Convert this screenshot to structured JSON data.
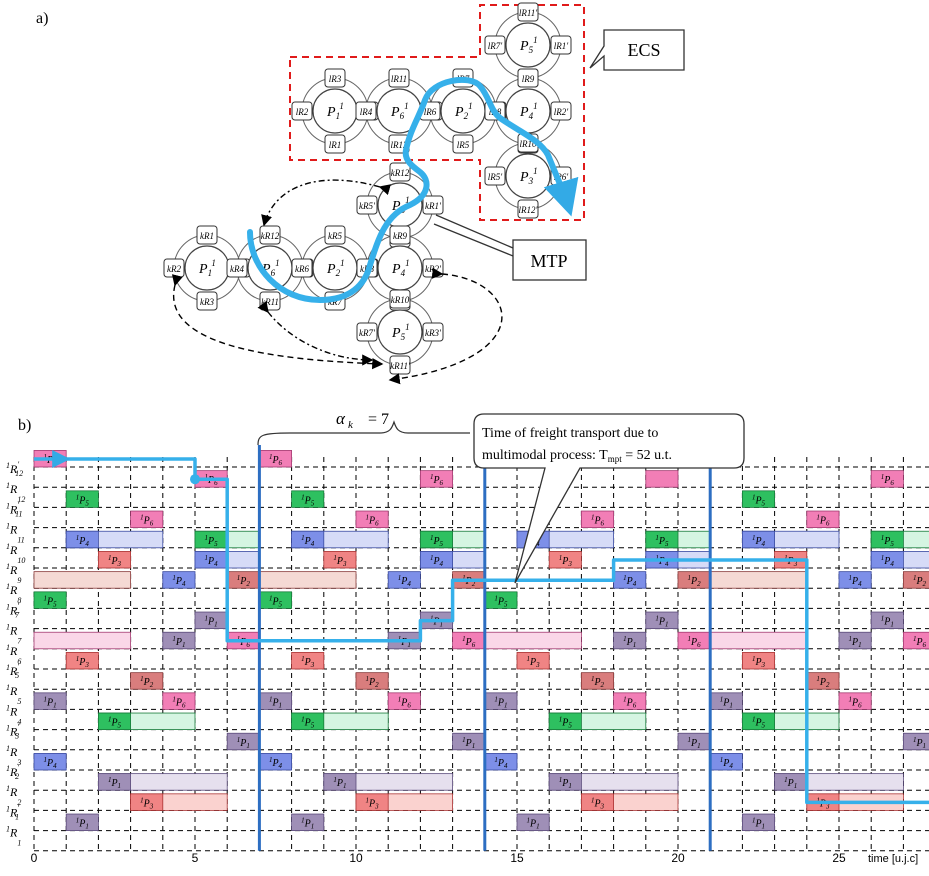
{
  "panel_a": {
    "label": "a)",
    "ecs_label": "ECS",
    "mtp_label": "MTP",
    "places": [
      {
        "id": "P1_top",
        "name": "P",
        "sub": "1",
        "sup": "1",
        "resources": [
          "lR3",
          "lR2",
          "lR4",
          "lR1"
        ]
      },
      {
        "id": "P6_top",
        "name": "P",
        "sub": "6",
        "sup": "1",
        "resources": [
          "lR11",
          "lR4",
          "lR6",
          "lR12"
        ]
      },
      {
        "id": "P2_top",
        "name": "P",
        "sub": "2",
        "sup": "1",
        "resources": [
          "lR7",
          "lR6",
          "lR8",
          "lR5"
        ]
      },
      {
        "id": "P4_top",
        "name": "P",
        "sub": "4",
        "sup": "1",
        "resources": [
          "lR9",
          "lR8",
          "lR2'",
          "lR10"
        ]
      },
      {
        "id": "P5_top",
        "name": "P",
        "sub": "5",
        "sup": "1",
        "resources": [
          "lR11'",
          "lR7'",
          "lR1'",
          "lR9"
        ]
      },
      {
        "id": "P3_top",
        "name": "P",
        "sub": "3",
        "sup": "1",
        "resources": [
          "lR10",
          "lR5'",
          "lR6'",
          "lR12'"
        ]
      },
      {
        "id": "P3_mid",
        "name": "P",
        "sub": "3",
        "sup": "1",
        "resources": [
          "kR12",
          "kR5'",
          "kR1'",
          "kR9"
        ]
      },
      {
        "id": "P1_bot",
        "name": "P",
        "sub": "1",
        "sup": "1",
        "resources": [
          "kR1",
          "kR2",
          "kR4",
          "kR3"
        ]
      },
      {
        "id": "P6_bot",
        "name": "P",
        "sub": "6",
        "sup": "1",
        "resources": [
          "kR12",
          "kR4",
          "kR6",
          "kR11"
        ]
      },
      {
        "id": "P2_bot",
        "name": "P",
        "sub": "2",
        "sup": "1",
        "resources": [
          "kR5",
          "kR6",
          "kR8",
          "kR7"
        ]
      },
      {
        "id": "P4_bot",
        "name": "P",
        "sub": "4",
        "sup": "1",
        "resources": [
          "kR9",
          "kR8",
          "kR2'",
          "kR10"
        ]
      },
      {
        "id": "P5_bot",
        "name": "P",
        "sub": "5",
        "sup": "1",
        "resources": [
          "kR10",
          "kR7'",
          "kR3'",
          "kR11'"
        ]
      }
    ]
  },
  "panel_b": {
    "label": "b)",
    "alpha_label": "α",
    "alpha_sub": "k",
    "alpha_value": "= 7",
    "callout_line1": "Time of freight transport due to",
    "callout_line2_prefix": "multimodal process: T",
    "callout_line2_sub": "mpt",
    "callout_line2_suffix": " = 52 u.t.",
    "x_axis_label": "time [u.j.c]",
    "x_ticks": [
      "0",
      "5",
      "10",
      "15",
      "20",
      "25"
    ],
    "rows": [
      {
        "sup": "1",
        "base": "R",
        "sub": "12",
        "prime": "'"
      },
      {
        "sup": "1",
        "base": "R",
        "sub": "12",
        "prime": ""
      },
      {
        "sup": "1",
        "base": "R",
        "sub": "11",
        "prime": "'"
      },
      {
        "sup": "1",
        "base": "R",
        "sub": "11",
        "prime": ""
      },
      {
        "sup": "1",
        "base": "R",
        "sub": "10",
        "prime": ""
      },
      {
        "sup": "1",
        "base": "R",
        "sub": "9",
        "prime": ""
      },
      {
        "sup": "1",
        "base": "R",
        "sub": "8",
        "prime": ""
      },
      {
        "sup": "1",
        "base": "R",
        "sub": "7",
        "prime": "'"
      },
      {
        "sup": "1",
        "base": "R",
        "sub": "7",
        "prime": ""
      },
      {
        "sup": "1",
        "base": "R",
        "sub": "6",
        "prime": ""
      },
      {
        "sup": "1",
        "base": "R",
        "sub": "5",
        "prime": "'"
      },
      {
        "sup": "1",
        "base": "R",
        "sub": "5",
        "prime": ""
      },
      {
        "sup": "1",
        "base": "R",
        "sub": "4",
        "prime": ""
      },
      {
        "sup": "1",
        "base": "R",
        "sub": "3",
        "prime": "'"
      },
      {
        "sup": "1",
        "base": "R",
        "sub": "3",
        "prime": ""
      },
      {
        "sup": "1",
        "base": "R",
        "sub": "2",
        "prime": "'"
      },
      {
        "sup": "1",
        "base": "R",
        "sub": "2",
        "prime": ""
      },
      {
        "sup": "1",
        "base": "R",
        "sub": "1",
        "prime": "'"
      },
      {
        "sup": "1",
        "base": "R",
        "sub": "1",
        "prime": ""
      }
    ],
    "process_colors": {
      "1": {
        "fill": "#9f8fb7",
        "stroke": "#5a4a7a",
        "light": "#e6e0ee"
      },
      "2": {
        "fill": "#d97d7d",
        "stroke": "#8a3a3a",
        "light": "#f5d9d4"
      },
      "3": {
        "fill": "#f08484",
        "stroke": "#a33",
        "light": "#fad2cf"
      },
      "4": {
        "fill": "#7d8fe8",
        "stroke": "#3a4aa0",
        "light": "#d6dbf7"
      },
      "5": {
        "fill": "#2ec060",
        "stroke": "#177a3a",
        "light": "#d5f5e2"
      },
      "6": {
        "fill": "#f27eb6",
        "stroke": "#a33a70",
        "light": "#fad7e8"
      }
    },
    "blocks": [
      {
        "row": 0,
        "start": 0,
        "dur": 1,
        "p": "6"
      },
      {
        "row": 0,
        "start": 7,
        "dur": 1,
        "p": "6"
      },
      {
        "row": 1,
        "start": 5,
        "dur": 1,
        "p": "6"
      },
      {
        "row": 1,
        "start": 12,
        "dur": 1,
        "p": "6"
      },
      {
        "row": 1,
        "start": 19,
        "dur": 1,
        "p": "6",
        "empty": true
      },
      {
        "row": 1,
        "start": 26,
        "dur": 1,
        "p": "6"
      },
      {
        "row": 2,
        "start": 1,
        "dur": 1,
        "p": "5"
      },
      {
        "row": 2,
        "start": 8,
        "dur": 1,
        "p": "5"
      },
      {
        "row": 2,
        "start": 22,
        "dur": 1,
        "p": "5"
      },
      {
        "row": 3,
        "start": 3,
        "dur": 1,
        "p": "6"
      },
      {
        "row": 3,
        "start": 10,
        "dur": 1,
        "p": "6"
      },
      {
        "row": 3,
        "start": 17,
        "dur": 1,
        "p": "6"
      },
      {
        "row": 3,
        "start": 24,
        "dur": 1,
        "p": "6"
      },
      {
        "row": 4,
        "start": 1,
        "dur": 3,
        "p": "4",
        "tail": true
      },
      {
        "row": 4,
        "start": 5,
        "dur": 2,
        "p": "5",
        "tail": true
      },
      {
        "row": 4,
        "start": 8,
        "dur": 3,
        "p": "4",
        "tail": true
      },
      {
        "row": 4,
        "start": 12,
        "dur": 2,
        "p": "5",
        "tail": true
      },
      {
        "row": 4,
        "start": 15,
        "dur": 3,
        "p": "4",
        "tail": true
      },
      {
        "row": 4,
        "start": 19,
        "dur": 2,
        "p": "5",
        "tail": true
      },
      {
        "row": 4,
        "start": 22,
        "dur": 3,
        "p": "4",
        "tail": true
      },
      {
        "row": 4,
        "start": 26,
        "dur": 2,
        "p": "5",
        "tail": true
      },
      {
        "row": 5,
        "start": 2,
        "dur": 1,
        "p": "3"
      },
      {
        "row": 5,
        "start": 5,
        "dur": 2,
        "p": "4",
        "tail": true
      },
      {
        "row": 5,
        "start": 9,
        "dur": 1,
        "p": "3"
      },
      {
        "row": 5,
        "start": 12,
        "dur": 2,
        "p": "4",
        "tail": true
      },
      {
        "row": 5,
        "start": 16,
        "dur": 1,
        "p": "3"
      },
      {
        "row": 5,
        "start": 19,
        "dur": 2,
        "p": "4",
        "tail": true
      },
      {
        "row": 5,
        "start": 23,
        "dur": 1,
        "p": "3"
      },
      {
        "row": 5,
        "start": 26,
        "dur": 2,
        "p": "4",
        "tail": true
      },
      {
        "row": 6,
        "start": 0,
        "dur": 3,
        "p": "2",
        "ghost": true
      },
      {
        "row": 6,
        "start": 4,
        "dur": 1,
        "p": "4"
      },
      {
        "row": 6,
        "start": 6,
        "dur": 1,
        "p": "2"
      },
      {
        "row": 6,
        "start": 7,
        "dur": 3,
        "p": "2",
        "ghost": true
      },
      {
        "row": 6,
        "start": 11,
        "dur": 1,
        "p": "4"
      },
      {
        "row": 6,
        "start": 13,
        "dur": 1,
        "p": "2"
      },
      {
        "row": 6,
        "start": 18,
        "dur": 1,
        "p": "4"
      },
      {
        "row": 6,
        "start": 20,
        "dur": 1,
        "p": "2"
      },
      {
        "row": 6,
        "start": 21,
        "dur": 3,
        "p": "2",
        "ghost": true
      },
      {
        "row": 6,
        "start": 25,
        "dur": 1,
        "p": "4"
      },
      {
        "row": 6,
        "start": 27,
        "dur": 1,
        "p": "2"
      },
      {
        "row": 7,
        "start": 0,
        "dur": 1,
        "p": "5"
      },
      {
        "row": 7,
        "start": 7,
        "dur": 1,
        "p": "5"
      },
      {
        "row": 7,
        "start": 14,
        "dur": 1,
        "p": "5"
      },
      {
        "row": 8,
        "start": 5,
        "dur": 1,
        "p": "1"
      },
      {
        "row": 8,
        "start": 12,
        "dur": 1,
        "p": "1"
      },
      {
        "row": 8,
        "start": 19,
        "dur": 1,
        "p": "1"
      },
      {
        "row": 8,
        "start": 26,
        "dur": 1,
        "p": "1"
      },
      {
        "row": 9,
        "start": 0,
        "dur": 3,
        "p": "6",
        "ghost": true
      },
      {
        "row": 9,
        "start": 4,
        "dur": 1,
        "p": "1"
      },
      {
        "row": 9,
        "start": 6,
        "dur": 1,
        "p": "6"
      },
      {
        "row": 9,
        "start": 11,
        "dur": 1,
        "p": "1"
      },
      {
        "row": 9,
        "start": 13,
        "dur": 1,
        "p": "6"
      },
      {
        "row": 9,
        "start": 14,
        "dur": 3,
        "p": "6",
        "ghost": true
      },
      {
        "row": 9,
        "start": 18,
        "dur": 1,
        "p": "1"
      },
      {
        "row": 9,
        "start": 20,
        "dur": 1,
        "p": "6"
      },
      {
        "row": 9,
        "start": 21,
        "dur": 3,
        "p": "6",
        "ghost": true
      },
      {
        "row": 9,
        "start": 25,
        "dur": 1,
        "p": "1"
      },
      {
        "row": 9,
        "start": 27,
        "dur": 1,
        "p": "6"
      },
      {
        "row": 10,
        "start": 1,
        "dur": 1,
        "p": "3"
      },
      {
        "row": 10,
        "start": 8,
        "dur": 1,
        "p": "3"
      },
      {
        "row": 10,
        "start": 15,
        "dur": 1,
        "p": "3"
      },
      {
        "row": 10,
        "start": 22,
        "dur": 1,
        "p": "3"
      },
      {
        "row": 11,
        "start": 3,
        "dur": 1,
        "p": "2"
      },
      {
        "row": 11,
        "start": 10,
        "dur": 1,
        "p": "2"
      },
      {
        "row": 11,
        "start": 17,
        "dur": 1,
        "p": "2"
      },
      {
        "row": 11,
        "start": 24,
        "dur": 1,
        "p": "2"
      },
      {
        "row": 12,
        "start": 0,
        "dur": 1,
        "p": "1"
      },
      {
        "row": 12,
        "start": 4,
        "dur": 1,
        "p": "6"
      },
      {
        "row": 12,
        "start": 7,
        "dur": 1,
        "p": "1"
      },
      {
        "row": 12,
        "start": 11,
        "dur": 1,
        "p": "6"
      },
      {
        "row": 12,
        "start": 14,
        "dur": 1,
        "p": "1"
      },
      {
        "row": 12,
        "start": 18,
        "dur": 1,
        "p": "6"
      },
      {
        "row": 12,
        "start": 21,
        "dur": 1,
        "p": "1"
      },
      {
        "row": 12,
        "start": 25,
        "dur": 1,
        "p": "6"
      },
      {
        "row": 13,
        "start": 2,
        "dur": 3,
        "p": "5",
        "tail": true
      },
      {
        "row": 13,
        "start": 8,
        "dur": 3,
        "p": "5",
        "tail": true
      },
      {
        "row": 13,
        "start": 16,
        "dur": 3,
        "p": "5",
        "tail": true
      },
      {
        "row": 13,
        "start": 22,
        "dur": 3,
        "p": "5",
        "tail": true
      },
      {
        "row": 14,
        "start": 6,
        "dur": 1,
        "p": "1"
      },
      {
        "row": 14,
        "start": 13,
        "dur": 1,
        "p": "1"
      },
      {
        "row": 14,
        "start": 20,
        "dur": 1,
        "p": "1"
      },
      {
        "row": 14,
        "start": 27,
        "dur": 1,
        "p": "1"
      },
      {
        "row": 15,
        "start": 0,
        "dur": 1,
        "p": "4"
      },
      {
        "row": 15,
        "start": 7,
        "dur": 1,
        "p": "4"
      },
      {
        "row": 15,
        "start": 14,
        "dur": 1,
        "p": "4"
      },
      {
        "row": 15,
        "start": 21,
        "dur": 1,
        "p": "4"
      },
      {
        "row": 16,
        "start": 2,
        "dur": 4,
        "p": "1",
        "tail": true
      },
      {
        "row": 16,
        "start": 9,
        "dur": 4,
        "p": "1",
        "tail": true
      },
      {
        "row": 16,
        "start": 16,
        "dur": 4,
        "p": "1",
        "tail": true
      },
      {
        "row": 16,
        "start": 23,
        "dur": 4,
        "p": "1",
        "tail": true
      },
      {
        "row": 17,
        "start": 3,
        "dur": 3,
        "p": "3",
        "tail": true
      },
      {
        "row": 17,
        "start": 10,
        "dur": 3,
        "p": "3",
        "tail": true
      },
      {
        "row": 17,
        "start": 17,
        "dur": 3,
        "p": "3",
        "tail": true
      },
      {
        "row": 17,
        "start": 24,
        "dur": 3,
        "p": "3",
        "tail": true
      },
      {
        "row": 18,
        "start": 1,
        "dur": 1,
        "p": "1"
      },
      {
        "row": 18,
        "start": 8,
        "dur": 1,
        "p": "1"
      },
      {
        "row": 18,
        "start": 15,
        "dur": 1,
        "p": "1"
      },
      {
        "row": 18,
        "start": 22,
        "dur": 1,
        "p": "1"
      }
    ],
    "route": [
      [
        0,
        0
      ],
      [
        5,
        0
      ],
      [
        5,
        1
      ],
      [
        6,
        1
      ],
      [
        6,
        9
      ],
      [
        12,
        9
      ],
      [
        12,
        8
      ],
      [
        13,
        8
      ],
      [
        13,
        6
      ],
      [
        18,
        6
      ],
      [
        18,
        5
      ],
      [
        24,
        5
      ],
      [
        24,
        17
      ],
      [
        28,
        17
      ]
    ],
    "cycle_lines": [
      7,
      14,
      21
    ]
  }
}
